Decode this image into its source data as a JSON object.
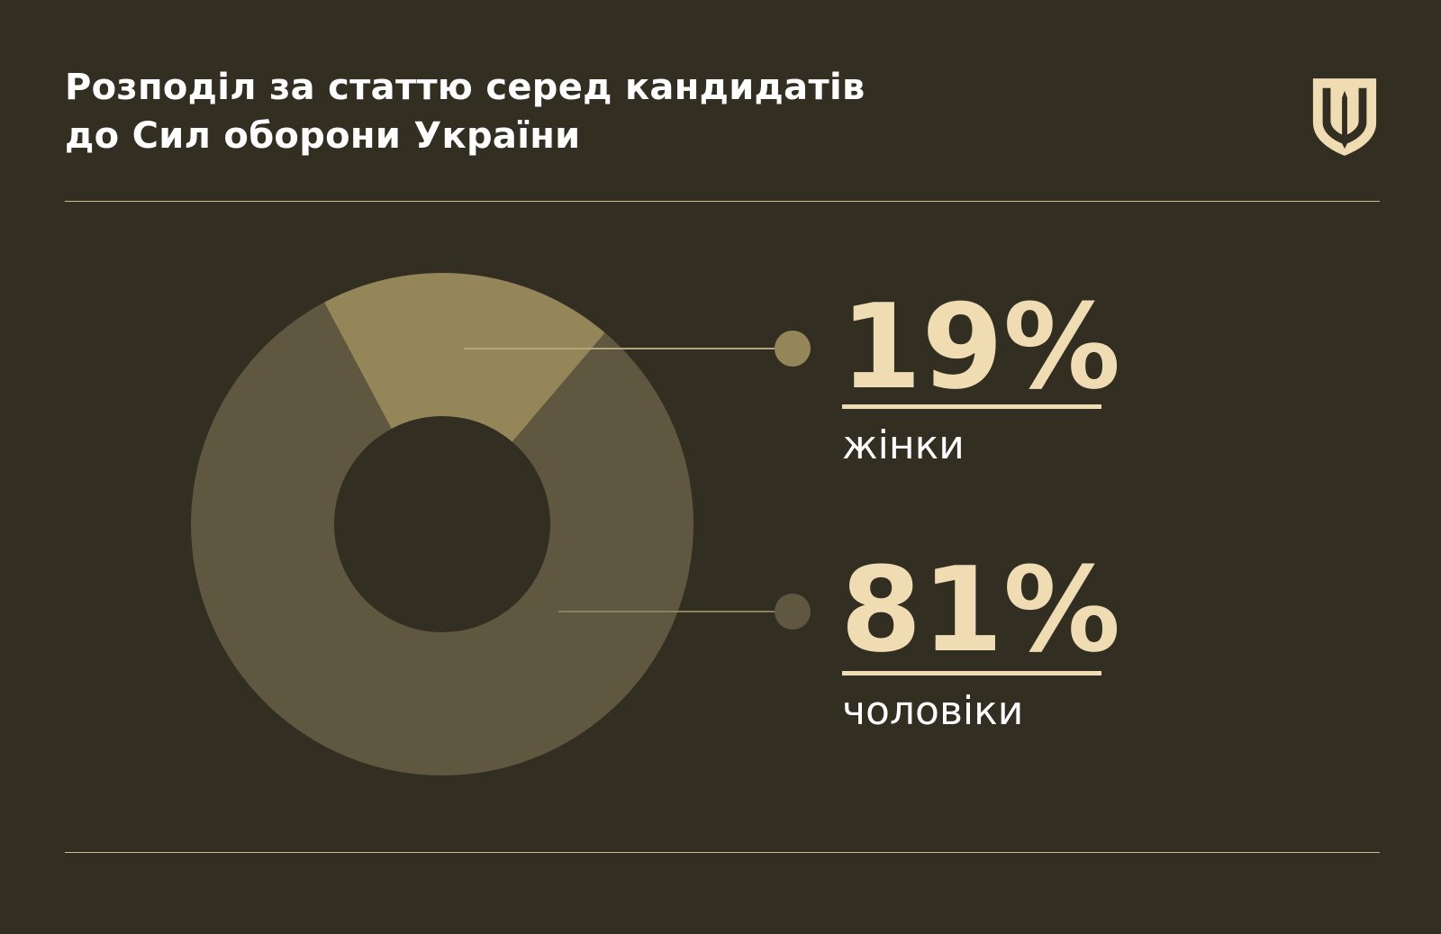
{
  "header": {
    "title_line1": "Розподіл за статтю серед кандидатів",
    "title_line2": "до Сил оборони України"
  },
  "logo": {
    "icon": "trident-shield-icon"
  },
  "colors": {
    "background": "#322e22",
    "accent": "#efdcb2",
    "women": "#958659",
    "men": "#605740",
    "divider": "#cdbd90"
  },
  "chart_data": {
    "type": "pie",
    "style": "donut",
    "title": "Розподіл за статтю серед кандидатів до Сил оборони України",
    "categories": [
      "жінки",
      "чоловіки"
    ],
    "values": [
      19,
      81
    ],
    "value_labels": [
      "19%",
      "81%"
    ],
    "unit": "%",
    "legend": "right"
  }
}
